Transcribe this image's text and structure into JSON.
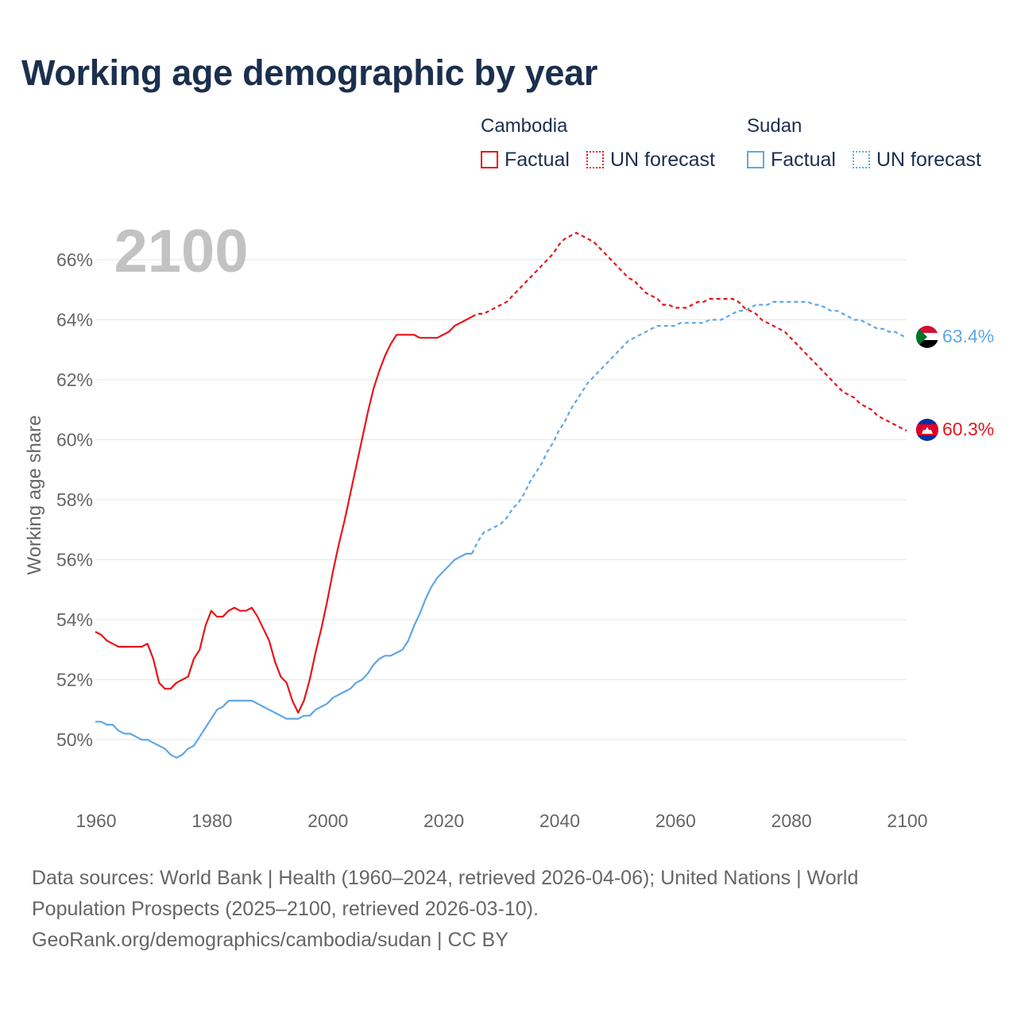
{
  "title": "Working age demographic by year",
  "legend": {
    "groups": [
      {
        "country": "Cambodia",
        "factual_label": "Factual",
        "forecast_label": "UN forecast",
        "color": "#e8141b"
      },
      {
        "country": "Sudan",
        "factual_label": "Factual",
        "forecast_label": "UN forecast",
        "color": "#5fa8e6"
      }
    ]
  },
  "year_watermark": "2100",
  "end_labels": {
    "cambodia": "60.3%",
    "sudan": "63.4%"
  },
  "flags": {
    "cambodia": "cambodia-flag-icon",
    "sudan": "sudan-flag-icon"
  },
  "source_lines": [
    "Data sources: World Bank | Health (1960–2024, retrieved 2026-04-06); United Nations | World",
    "Population Prospects (2025–2100, retrieved 2026-03-10).",
    "GeoRank.org/demographics/cambodia/sudan | CC BY"
  ],
  "chart_data": {
    "type": "line",
    "title": "Working age demographic by year",
    "xlabel": "",
    "ylabel": "Working age share",
    "xlim": [
      1960,
      2100
    ],
    "ylim": [
      48,
      67.5
    ],
    "x_ticks": [
      1960,
      1980,
      2000,
      2020,
      2040,
      2060,
      2080,
      2100
    ],
    "x_tick_labels": [
      "1960",
      "1980",
      "2000",
      "2020",
      "2040",
      "2060",
      "2080",
      "2100"
    ],
    "y_ticks": [
      50,
      52,
      54,
      56,
      58,
      60,
      62,
      64,
      66
    ],
    "y_tick_labels": [
      "50%",
      "52%",
      "54%",
      "56%",
      "58%",
      "60%",
      "62%",
      "64%",
      "66%"
    ],
    "grid": true,
    "forecast_start_year": 2025,
    "series": [
      {
        "name": "Cambodia",
        "color": "#e8141b",
        "points": [
          [
            1960,
            53.6
          ],
          [
            1961,
            53.5
          ],
          [
            1962,
            53.3
          ],
          [
            1963,
            53.2
          ],
          [
            1964,
            53.1
          ],
          [
            1965,
            53.1
          ],
          [
            1966,
            53.1
          ],
          [
            1967,
            53.1
          ],
          [
            1968,
            53.1
          ],
          [
            1969,
            53.2
          ],
          [
            1970,
            52.7
          ],
          [
            1971,
            51.9
          ],
          [
            1972,
            51.7
          ],
          [
            1973,
            51.7
          ],
          [
            1974,
            51.9
          ],
          [
            1975,
            52.0
          ],
          [
            1976,
            52.1
          ],
          [
            1977,
            52.7
          ],
          [
            1978,
            53.0
          ],
          [
            1979,
            53.8
          ],
          [
            1980,
            54.3
          ],
          [
            1981,
            54.1
          ],
          [
            1982,
            54.1
          ],
          [
            1983,
            54.3
          ],
          [
            1984,
            54.4
          ],
          [
            1985,
            54.3
          ],
          [
            1986,
            54.3
          ],
          [
            1987,
            54.4
          ],
          [
            1988,
            54.1
          ],
          [
            1989,
            53.7
          ],
          [
            1990,
            53.3
          ],
          [
            1991,
            52.6
          ],
          [
            1992,
            52.1
          ],
          [
            1993,
            51.9
          ],
          [
            1994,
            51.3
          ],
          [
            1995,
            50.9
          ],
          [
            1996,
            51.3
          ],
          [
            1997,
            52.0
          ],
          [
            1998,
            52.9
          ],
          [
            1999,
            53.7
          ],
          [
            2000,
            54.6
          ],
          [
            2001,
            55.6
          ],
          [
            2002,
            56.5
          ],
          [
            2003,
            57.3
          ],
          [
            2004,
            58.2
          ],
          [
            2005,
            59.1
          ],
          [
            2006,
            60.0
          ],
          [
            2007,
            60.9
          ],
          [
            2008,
            61.7
          ],
          [
            2009,
            62.3
          ],
          [
            2010,
            62.8
          ],
          [
            2011,
            63.2
          ],
          [
            2012,
            63.5
          ],
          [
            2013,
            63.5
          ],
          [
            2014,
            63.5
          ],
          [
            2015,
            63.5
          ],
          [
            2016,
            63.4
          ],
          [
            2017,
            63.4
          ],
          [
            2018,
            63.4
          ],
          [
            2019,
            63.4
          ],
          [
            2020,
            63.5
          ],
          [
            2021,
            63.6
          ],
          [
            2022,
            63.8
          ],
          [
            2023,
            63.9
          ],
          [
            2024,
            64.0
          ],
          [
            2025,
            64.1
          ],
          [
            2026,
            64.2
          ],
          [
            2027,
            64.2
          ],
          [
            2028,
            64.3
          ],
          [
            2029,
            64.4
          ],
          [
            2030,
            64.5
          ],
          [
            2031,
            64.6
          ],
          [
            2032,
            64.8
          ],
          [
            2033,
            65.0
          ],
          [
            2034,
            65.2
          ],
          [
            2035,
            65.4
          ],
          [
            2036,
            65.6
          ],
          [
            2037,
            65.8
          ],
          [
            2038,
            66.0
          ],
          [
            2039,
            66.2
          ],
          [
            2040,
            66.5
          ],
          [
            2041,
            66.7
          ],
          [
            2042,
            66.8
          ],
          [
            2043,
            66.9
          ],
          [
            2044,
            66.8
          ],
          [
            2045,
            66.7
          ],
          [
            2046,
            66.6
          ],
          [
            2047,
            66.4
          ],
          [
            2048,
            66.2
          ],
          [
            2049,
            66.0
          ],
          [
            2050,
            65.8
          ],
          [
            2051,
            65.6
          ],
          [
            2052,
            65.4
          ],
          [
            2053,
            65.3
          ],
          [
            2054,
            65.1
          ],
          [
            2055,
            64.9
          ],
          [
            2056,
            64.8
          ],
          [
            2057,
            64.7
          ],
          [
            2058,
            64.5
          ],
          [
            2059,
            64.5
          ],
          [
            2060,
            64.4
          ],
          [
            2061,
            64.4
          ],
          [
            2062,
            64.4
          ],
          [
            2063,
            64.5
          ],
          [
            2064,
            64.6
          ],
          [
            2065,
            64.6
          ],
          [
            2066,
            64.7
          ],
          [
            2067,
            64.7
          ],
          [
            2068,
            64.7
          ],
          [
            2069,
            64.7
          ],
          [
            2070,
            64.7
          ],
          [
            2071,
            64.6
          ],
          [
            2072,
            64.4
          ],
          [
            2073,
            64.3
          ],
          [
            2074,
            64.2
          ],
          [
            2075,
            64.0
          ],
          [
            2076,
            63.9
          ],
          [
            2077,
            63.8
          ],
          [
            2078,
            63.7
          ],
          [
            2079,
            63.6
          ],
          [
            2080,
            63.4
          ],
          [
            2081,
            63.2
          ],
          [
            2082,
            63.0
          ],
          [
            2083,
            62.8
          ],
          [
            2084,
            62.6
          ],
          [
            2085,
            62.4
          ],
          [
            2086,
            62.2
          ],
          [
            2087,
            62.0
          ],
          [
            2088,
            61.8
          ],
          [
            2089,
            61.6
          ],
          [
            2090,
            61.5
          ],
          [
            2091,
            61.4
          ],
          [
            2092,
            61.2
          ],
          [
            2093,
            61.1
          ],
          [
            2094,
            61.0
          ],
          [
            2095,
            60.8
          ],
          [
            2096,
            60.7
          ],
          [
            2097,
            60.6
          ],
          [
            2098,
            60.5
          ],
          [
            2099,
            60.4
          ],
          [
            2100,
            60.3
          ]
        ]
      },
      {
        "name": "Sudan",
        "color": "#5fa8e6",
        "points": [
          [
            1960,
            50.6
          ],
          [
            1961,
            50.6
          ],
          [
            1962,
            50.5
          ],
          [
            1963,
            50.5
          ],
          [
            1964,
            50.3
          ],
          [
            1965,
            50.2
          ],
          [
            1966,
            50.2
          ],
          [
            1967,
            50.1
          ],
          [
            1968,
            50.0
          ],
          [
            1969,
            50.0
          ],
          [
            1970,
            49.9
          ],
          [
            1971,
            49.8
          ],
          [
            1972,
            49.7
          ],
          [
            1973,
            49.5
          ],
          [
            1974,
            49.4
          ],
          [
            1975,
            49.5
          ],
          [
            1976,
            49.7
          ],
          [
            1977,
            49.8
          ],
          [
            1978,
            50.1
          ],
          [
            1979,
            50.4
          ],
          [
            1980,
            50.7
          ],
          [
            1981,
            51.0
          ],
          [
            1982,
            51.1
          ],
          [
            1983,
            51.3
          ],
          [
            1984,
            51.3
          ],
          [
            1985,
            51.3
          ],
          [
            1986,
            51.3
          ],
          [
            1987,
            51.3
          ],
          [
            1988,
            51.2
          ],
          [
            1989,
            51.1
          ],
          [
            1990,
            51.0
          ],
          [
            1991,
            50.9
          ],
          [
            1992,
            50.8
          ],
          [
            1993,
            50.7
          ],
          [
            1994,
            50.7
          ],
          [
            1995,
            50.7
          ],
          [
            1996,
            50.8
          ],
          [
            1997,
            50.8
          ],
          [
            1998,
            51.0
          ],
          [
            1999,
            51.1
          ],
          [
            2000,
            51.2
          ],
          [
            2001,
            51.4
          ],
          [
            2002,
            51.5
          ],
          [
            2003,
            51.6
          ],
          [
            2004,
            51.7
          ],
          [
            2005,
            51.9
          ],
          [
            2006,
            52.0
          ],
          [
            2007,
            52.2
          ],
          [
            2008,
            52.5
          ],
          [
            2009,
            52.7
          ],
          [
            2010,
            52.8
          ],
          [
            2011,
            52.8
          ],
          [
            2012,
            52.9
          ],
          [
            2013,
            53.0
          ],
          [
            2014,
            53.3
          ],
          [
            2015,
            53.8
          ],
          [
            2016,
            54.2
          ],
          [
            2017,
            54.7
          ],
          [
            2018,
            55.1
          ],
          [
            2019,
            55.4
          ],
          [
            2020,
            55.6
          ],
          [
            2021,
            55.8
          ],
          [
            2022,
            56.0
          ],
          [
            2023,
            56.1
          ],
          [
            2024,
            56.2
          ],
          [
            2025,
            56.2
          ],
          [
            2026,
            56.6
          ],
          [
            2027,
            56.9
          ],
          [
            2028,
            57.0
          ],
          [
            2029,
            57.1
          ],
          [
            2030,
            57.2
          ],
          [
            2031,
            57.4
          ],
          [
            2032,
            57.7
          ],
          [
            2033,
            57.9
          ],
          [
            2034,
            58.2
          ],
          [
            2035,
            58.6
          ],
          [
            2036,
            58.9
          ],
          [
            2037,
            59.2
          ],
          [
            2038,
            59.6
          ],
          [
            2039,
            59.9
          ],
          [
            2040,
            60.3
          ],
          [
            2041,
            60.6
          ],
          [
            2042,
            61.0
          ],
          [
            2043,
            61.3
          ],
          [
            2044,
            61.6
          ],
          [
            2045,
            61.9
          ],
          [
            2046,
            62.1
          ],
          [
            2047,
            62.3
          ],
          [
            2048,
            62.5
          ],
          [
            2049,
            62.7
          ],
          [
            2050,
            62.9
          ],
          [
            2051,
            63.1
          ],
          [
            2052,
            63.3
          ],
          [
            2053,
            63.4
          ],
          [
            2054,
            63.5
          ],
          [
            2055,
            63.6
          ],
          [
            2056,
            63.7
          ],
          [
            2057,
            63.8
          ],
          [
            2058,
            63.8
          ],
          [
            2059,
            63.8
          ],
          [
            2060,
            63.8
          ],
          [
            2061,
            63.9
          ],
          [
            2062,
            63.9
          ],
          [
            2063,
            63.9
          ],
          [
            2064,
            63.9
          ],
          [
            2065,
            63.9
          ],
          [
            2066,
            64.0
          ],
          [
            2067,
            64.0
          ],
          [
            2068,
            64.0
          ],
          [
            2069,
            64.1
          ],
          [
            2070,
            64.2
          ],
          [
            2071,
            64.3
          ],
          [
            2072,
            64.3
          ],
          [
            2073,
            64.4
          ],
          [
            2074,
            64.5
          ],
          [
            2075,
            64.5
          ],
          [
            2076,
            64.5
          ],
          [
            2077,
            64.6
          ],
          [
            2078,
            64.6
          ],
          [
            2079,
            64.6
          ],
          [
            2080,
            64.6
          ],
          [
            2081,
            64.6
          ],
          [
            2082,
            64.6
          ],
          [
            2083,
            64.6
          ],
          [
            2084,
            64.5
          ],
          [
            2085,
            64.5
          ],
          [
            2086,
            64.4
          ],
          [
            2087,
            64.3
          ],
          [
            2088,
            64.3
          ],
          [
            2089,
            64.2
          ],
          [
            2090,
            64.1
          ],
          [
            2091,
            64.0
          ],
          [
            2092,
            64.0
          ],
          [
            2093,
            63.9
          ],
          [
            2094,
            63.8
          ],
          [
            2095,
            63.7
          ],
          [
            2096,
            63.7
          ],
          [
            2097,
            63.6
          ],
          [
            2098,
            63.6
          ],
          [
            2099,
            63.5
          ],
          [
            2100,
            63.4
          ]
        ]
      }
    ]
  }
}
